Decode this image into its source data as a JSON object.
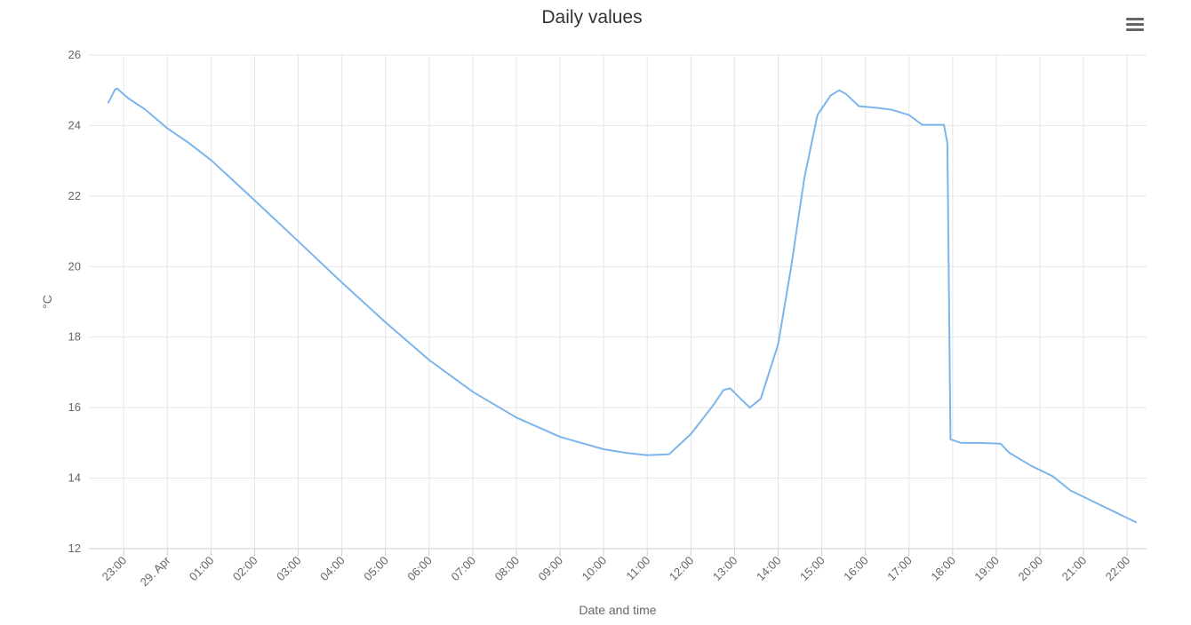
{
  "chart_data": {
    "type": "line",
    "title": "Daily values",
    "xlabel": "Date and time",
    "ylabel": "°C",
    "ylim": [
      12,
      26
    ],
    "yticks": [
      12,
      14,
      16,
      18,
      20,
      22,
      24,
      26
    ],
    "grid": true,
    "legend": "none",
    "xticks": [
      "23:00",
      "29. Apr",
      "01:00",
      "02:00",
      "03:00",
      "04:00",
      "05:00",
      "06:00",
      "07:00",
      "08:00",
      "09:00",
      "10:00",
      "11:00",
      "12:00",
      "13:00",
      "14:00",
      "15:00",
      "16:00",
      "17:00",
      "18:00",
      "19:00",
      "20:00",
      "21:00",
      "22:00"
    ],
    "xtick_hours": [
      -1,
      0,
      1,
      2,
      3,
      4,
      5,
      6,
      7,
      8,
      9,
      10,
      11,
      12,
      13,
      14,
      15,
      16,
      17,
      18,
      19,
      20,
      21,
      22
    ],
    "series": [
      {
        "color": "#7cb5ec",
        "hours": [
          -1.35,
          -1.2,
          -1.15,
          -0.9,
          -0.5,
          0,
          0.5,
          1,
          2,
          3,
          4,
          5,
          6,
          7,
          8,
          9,
          10,
          10.5,
          11,
          11.5,
          12,
          12.5,
          12.75,
          12.9,
          13.1,
          13.35,
          13.6,
          14,
          14.3,
          14.6,
          14.9,
          15.2,
          15.4,
          15.55,
          15.85,
          16.3,
          16.6,
          17.0,
          17.3,
          17.8,
          17.88,
          17.95,
          18.2,
          18.6,
          19.1,
          19.3,
          19.8,
          20.3,
          20.7,
          21.2,
          21.7,
          22.2
        ],
        "values": [
          24.65,
          25.02,
          25.05,
          24.78,
          24.45,
          23.92,
          23.5,
          23.02,
          21.88,
          20.72,
          19.55,
          18.42,
          17.35,
          16.45,
          15.72,
          15.17,
          14.82,
          14.72,
          14.65,
          14.68,
          15.25,
          16.05,
          16.5,
          16.55,
          16.3,
          16.0,
          16.25,
          17.8,
          20.0,
          22.5,
          24.3,
          24.85,
          25.0,
          24.9,
          24.55,
          24.5,
          24.45,
          24.3,
          24.02,
          24.02,
          23.5,
          15.1,
          15.0,
          15.0,
          14.98,
          14.72,
          14.35,
          14.05,
          13.65,
          13.35,
          13.05,
          12.75
        ]
      }
    ]
  },
  "menu_icon": "hamburger-menu-icon"
}
